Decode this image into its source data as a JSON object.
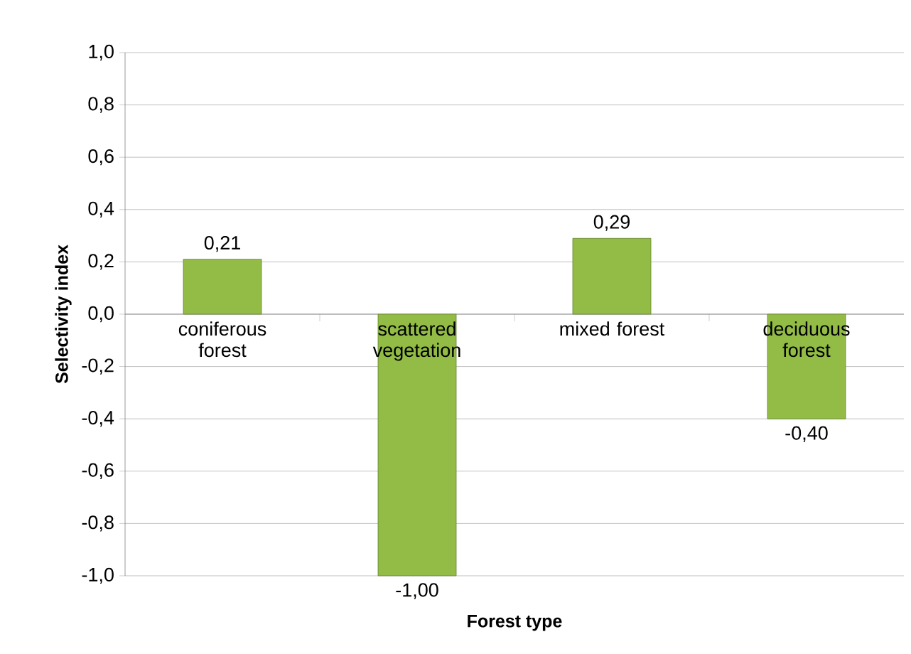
{
  "chart_data": {
    "type": "bar",
    "xlabel": "Forest type",
    "ylabel": "Selectivity index",
    "categories": [
      "coniferous forest",
      "scattered vegetation",
      "mixed forest",
      "deciduous forest"
    ],
    "values": [
      0.21,
      -1.0,
      0.29,
      -0.4
    ],
    "value_labels": [
      "0,21",
      "-1,00",
      "0,29",
      "-0,40"
    ],
    "color": "#92bc45",
    "ylim": [
      -1.0,
      1.0
    ],
    "yticks": [
      {
        "value": -1.0,
        "label": "-1,0"
      },
      {
        "value": -0.8,
        "label": "-0,8"
      },
      {
        "value": -0.6,
        "label": "-0,6"
      },
      {
        "value": -0.4,
        "label": "-0,4"
      },
      {
        "value": -0.2,
        "label": "-0,2"
      },
      {
        "value": 0.0,
        "label": "0,0"
      },
      {
        "value": 0.2,
        "label": "0,2"
      },
      {
        "value": 0.4,
        "label": "0,4"
      },
      {
        "value": 0.6,
        "label": "0,6"
      },
      {
        "value": 0.8,
        "label": "0,8"
      },
      {
        "value": 1.0,
        "label": "1,0"
      }
    ],
    "grid": "y"
  }
}
